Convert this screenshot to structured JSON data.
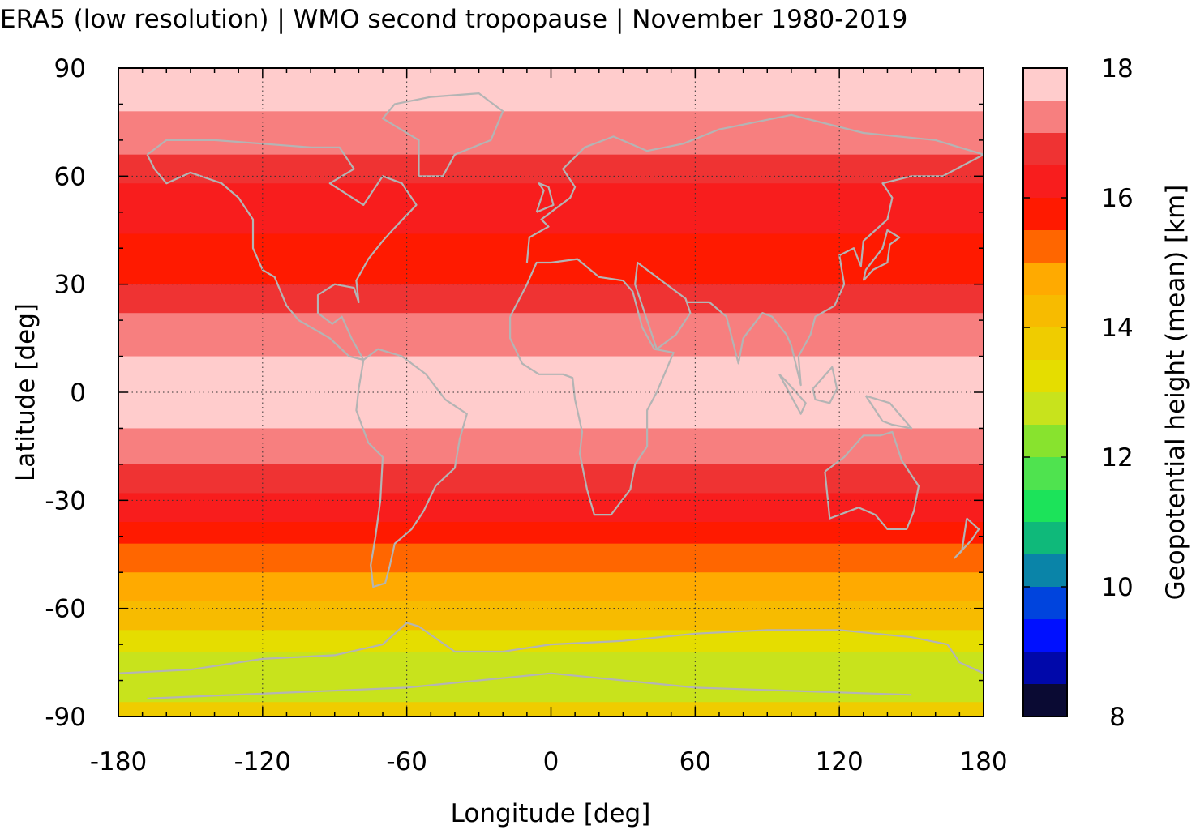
{
  "chart_data": {
    "type": "heatmap",
    "title": "ERA5 (low resolution) | WMO second tropopause | November 1980-2019",
    "xlabel": "Longitude [deg]",
    "ylabel": "Latitude [deg]",
    "colorbar_label": "Geopotential height (mean) [km]",
    "xlim": [
      -180,
      180
    ],
    "ylim": [
      -90,
      90
    ],
    "x_ticks": [
      -180,
      -120,
      -60,
      0,
      60,
      120,
      180
    ],
    "x_tick_labels": [
      "-180",
      "-120",
      "-60",
      "0",
      "60",
      "120",
      "180"
    ],
    "y_ticks": [
      90,
      60,
      30,
      0,
      -30,
      -60,
      -90
    ],
    "y_tick_labels": [
      "90",
      "60",
      "30",
      "0",
      "-30",
      "-60",
      "-90"
    ],
    "grid": true,
    "colorbar": {
      "range": [
        8,
        18
      ],
      "ticks": [
        18,
        16,
        14,
        12,
        10,
        8
      ],
      "tick_labels": [
        "18",
        "16",
        "14",
        "12",
        "10",
        "8"
      ],
      "levels_top_to_bottom": [
        "#ffcccc",
        "#f77f7f",
        "#ef3333",
        "#f81d1d",
        "#ff1a00",
        "#ff6600",
        "#ffaa00",
        "#f7bb00",
        "#efcc00",
        "#e5dd00",
        "#c8e31c",
        "#88e32e",
        "#4fe34f",
        "#1ce35a",
        "#0fb97a",
        "#0a84a8",
        "#0044dd",
        "#0010ff",
        "#0008aa",
        "#0a0a33"
      ]
    },
    "latitude_bands_km": [
      {
        "lat": [
          78,
          90
        ],
        "value": 17.8
      },
      {
        "lat": [
          66,
          78
        ],
        "value": 17.3
      },
      {
        "lat": [
          58,
          66
        ],
        "value": 16.8
      },
      {
        "lat": [
          44,
          58
        ],
        "value": 16.3
      },
      {
        "lat": [
          30,
          44
        ],
        "value": 16.0
      },
      {
        "lat": [
          22,
          30
        ],
        "value": 16.7
      },
      {
        "lat": [
          10,
          22
        ],
        "value": 17.3
      },
      {
        "lat": [
          -10,
          10
        ],
        "value": 17.8
      },
      {
        "lat": [
          -20,
          -10
        ],
        "value": 17.3
      },
      {
        "lat": [
          -28,
          -20
        ],
        "value": 16.8
      },
      {
        "lat": [
          -36,
          -28
        ],
        "value": 16.3
      },
      {
        "lat": [
          -42,
          -36
        ],
        "value": 16.0
      },
      {
        "lat": [
          -50,
          -42
        ],
        "value": 15.2
      },
      {
        "lat": [
          -58,
          -50
        ],
        "value": 14.8
      },
      {
        "lat": [
          -66,
          -58
        ],
        "value": 14.2
      },
      {
        "lat": [
          -72,
          -66
        ],
        "value": 13.4
      },
      {
        "lat": [
          -80,
          -72
        ],
        "value": 13.0
      },
      {
        "lat": [
          -86,
          -80
        ],
        "value": 12.8
      },
      {
        "lat": [
          -90,
          -86
        ],
        "value": 13.8
      }
    ],
    "coastline_color": "#b4b4b4"
  }
}
